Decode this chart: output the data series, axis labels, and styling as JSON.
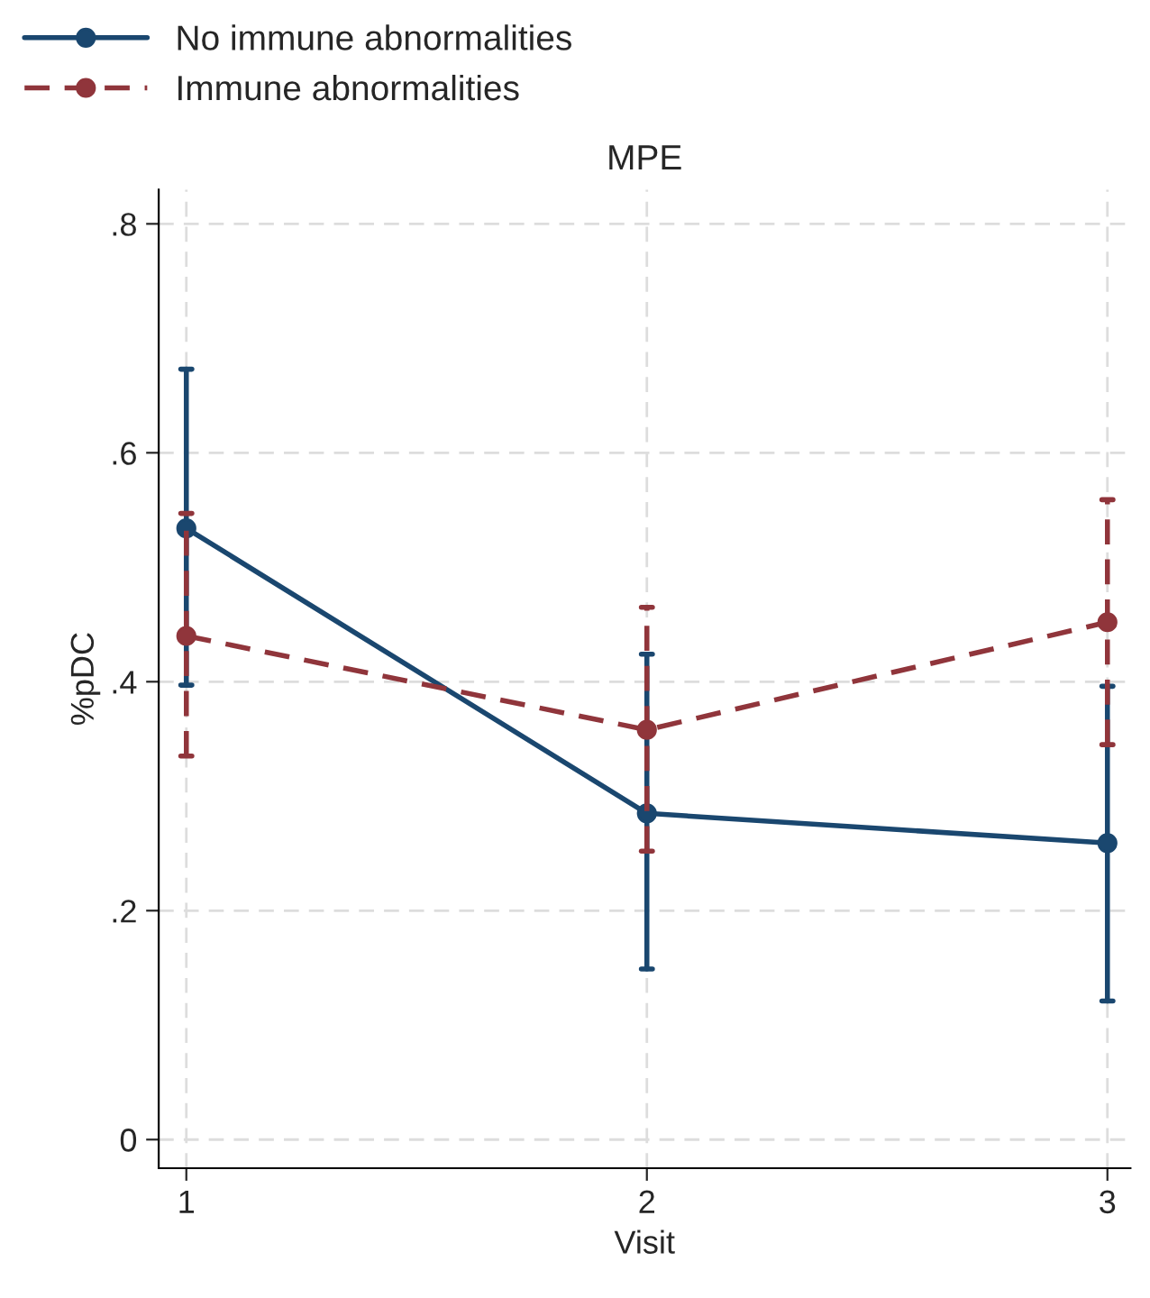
{
  "chart_data": {
    "type": "line",
    "title": "MPE",
    "xlabel": "Visit",
    "ylabel": "%pDC",
    "x": [
      1,
      2,
      3
    ],
    "series": [
      {
        "name": "No immune abnormalities",
        "color": "#1a476f",
        "line_style": "solid",
        "values": [
          0.534,
          0.285,
          0.259
        ],
        "errors": [
          [
            0.397,
            0.673
          ],
          [
            0.149,
            0.424
          ],
          [
            0.121,
            0.396
          ]
        ]
      },
      {
        "name": "Immune abnormalities",
        "color": "#90353b",
        "line_style": "dashed",
        "values": [
          0.44,
          0.358,
          0.452
        ],
        "errors": [
          [
            0.335,
            0.547
          ],
          [
            0.252,
            0.465
          ],
          [
            0.345,
            0.559
          ]
        ]
      }
    ],
    "xlim": [
      0.94,
      3.05
    ],
    "xticks": [
      1,
      2,
      3
    ],
    "ylim": [
      -0.025,
      0.83
    ],
    "yticks": [
      {
        "value": 0,
        "label": "0"
      },
      {
        "value": 0.2,
        "label": ".2"
      },
      {
        "value": 0.4,
        "label": ".4"
      },
      {
        "value": 0.6,
        "label": ".6"
      },
      {
        "value": 0.8,
        "label": ".8"
      }
    ],
    "grid": true,
    "legend": "top",
    "marker": "circle"
  }
}
